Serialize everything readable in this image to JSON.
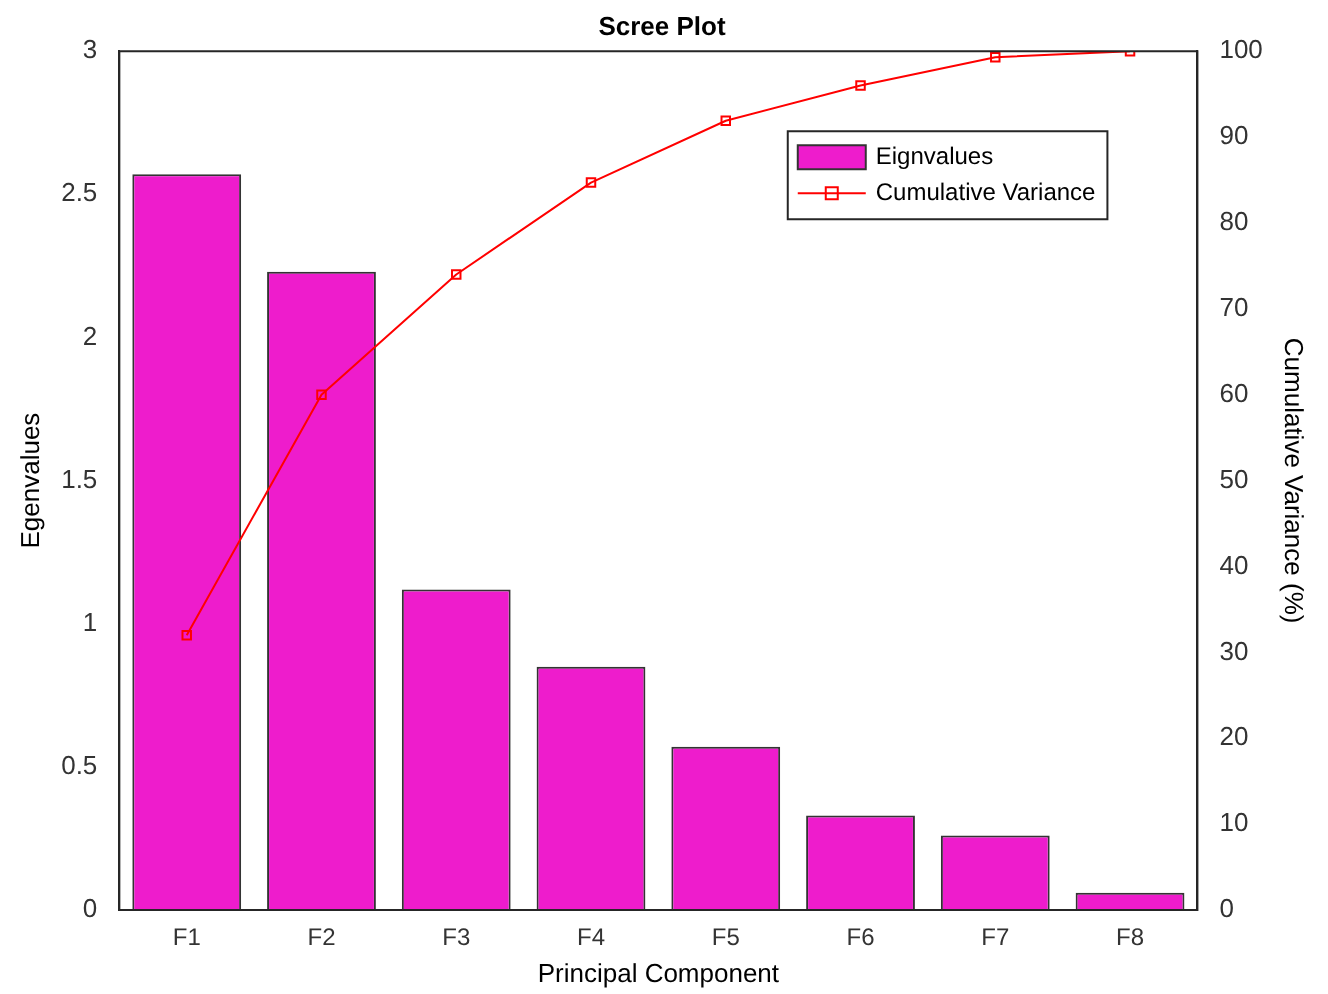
{
  "chart_data": {
    "type": "bar",
    "title": "Scree Plot",
    "xlabel": "Principal Component",
    "ylabel": "Egenvalues",
    "y2label": "Cumulative Variance (%)",
    "categories": [
      "F1",
      "F2",
      "F3",
      "F4",
      "F5",
      "F6",
      "F7",
      "F8"
    ],
    "series": [
      {
        "name": "Eignvalues",
        "color": "#ee1ccc",
        "values": [
          2.57,
          2.23,
          1.12,
          0.85,
          0.57,
          0.33,
          0.26,
          0.06
        ]
      },
      {
        "name": "Cumulative Variance",
        "type": "line",
        "axis": "y2",
        "color": "#ff0000",
        "marker": "square",
        "values": [
          32,
          60,
          74,
          84.7,
          91.9,
          96,
          99.3,
          100
        ]
      }
    ],
    "ylim": [
      0,
      3
    ],
    "yticks": [
      0,
      0.5,
      1,
      1.5,
      2,
      2.5,
      3
    ],
    "y2lim": [
      0,
      100
    ],
    "y2ticks": [
      0,
      10,
      20,
      30,
      40,
      50,
      60,
      70,
      80,
      90,
      100
    ],
    "legend": "top right",
    "grid": false
  }
}
